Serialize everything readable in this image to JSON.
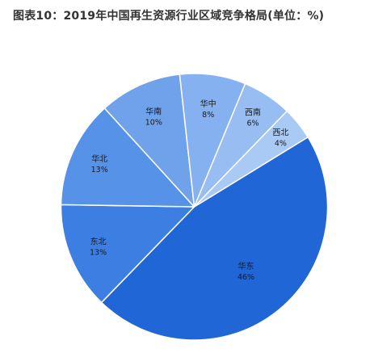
{
  "chart_data": {
    "type": "pie",
    "title": "图表10：2019年中国再生资源行业区域竞争格局(单位：%)",
    "categories": [
      "华东",
      "东北",
      "华北",
      "华南",
      "华中",
      "西南",
      "西北"
    ],
    "values": [
      46,
      13,
      13,
      10,
      8,
      6,
      4
    ],
    "value_labels": [
      "46%",
      "13%",
      "13%",
      "10%",
      "8%",
      "6%",
      "4%"
    ],
    "colors": [
      "#2166d6",
      "#3d7ee2",
      "#5792e9",
      "#70a2ec",
      "#85b1f0",
      "#97bdf2",
      "#a9caf4"
    ],
    "legend": "none",
    "start_direction": "top-right, clockwise"
  }
}
